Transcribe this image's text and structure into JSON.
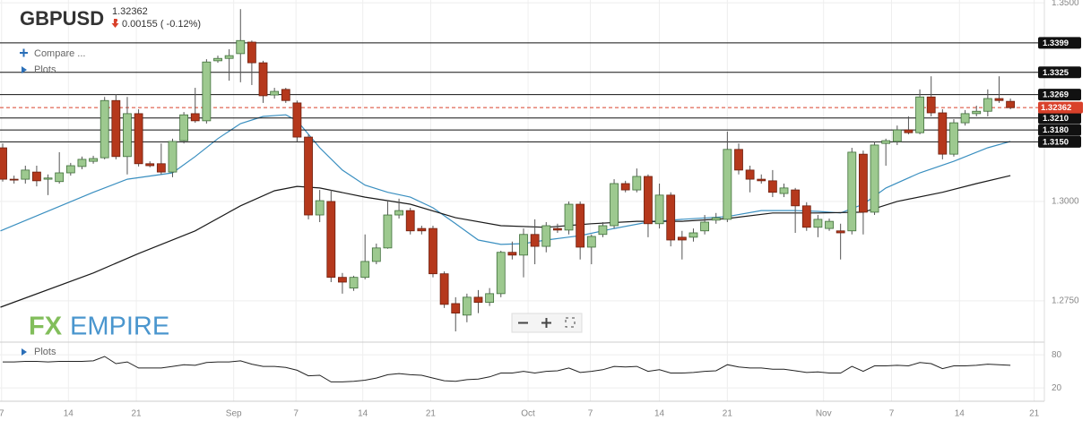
{
  "header": {
    "symbol": "GBPUSD",
    "change": "0.00155 ( -0.12%)"
  },
  "menu": {
    "compare": "Compare ...",
    "plots": "Plots"
  },
  "indicator_panel": {
    "label": "Plots"
  },
  "logo": {
    "fx": "FX",
    "empire": "EMPIRE"
  },
  "chart_data": [
    {
      "type": "candlestick",
      "xlim": [
        -0.24,
        92
      ],
      "ylim": [
        1.2655,
        1.3507
      ],
      "yticks": [
        {
          "value": 1.35,
          "label": "1.3500"
        },
        {
          "value": 1.3,
          "label": "1.3000"
        },
        {
          "value": 1.275,
          "label": "1.2750"
        }
      ],
      "xticks": [
        {
          "value": -0.1,
          "label": "7"
        },
        {
          "value": 5.8,
          "label": "14"
        },
        {
          "value": 11.8,
          "label": "21"
        },
        {
          "value": 20.4,
          "label": "Sep"
        },
        {
          "value": 25.9,
          "label": "7"
        },
        {
          "value": 31.8,
          "label": "14"
        },
        {
          "value": 37.8,
          "label": "21"
        },
        {
          "value": 46.4,
          "label": "Oct"
        },
        {
          "value": 51.9,
          "label": "7"
        },
        {
          "value": 58.0,
          "label": "14"
        },
        {
          "value": 64.0,
          "label": "21"
        },
        {
          "value": 72.5,
          "label": "Nov"
        },
        {
          "value": 78.5,
          "label": "7"
        },
        {
          "value": 84.5,
          "label": "14"
        },
        {
          "value": 91.1,
          "label": "21"
        }
      ],
      "grid": true,
      "up_color": "#9dc98f",
      "down_color": "#b5381c",
      "open": [
        1.3135,
        1.3056,
        1.3056,
        1.3074,
        1.3056,
        1.305,
        1.3072,
        1.3088,
        1.3101,
        1.311,
        1.3254,
        1.3113,
        1.3221,
        1.3095,
        1.3095,
        1.3074,
        1.3153,
        1.3221,
        1.3203,
        1.3354,
        1.336,
        1.3372,
        1.3401,
        1.3349,
        1.3268,
        1.3282,
        1.3248,
        1.3162,
        1.2966,
        1.3,
        1.2809,
        1.2782,
        1.2809,
        1.2849,
        1.2883,
        1.2966,
        1.2977,
        1.2932,
        1.2932,
        1.2818,
        1.2743,
        1.2714,
        1.2759,
        1.2746,
        1.2768,
        1.2872,
        1.2865,
        1.2917,
        1.2887,
        1.2932,
        1.2928,
        1.2993,
        1.2885,
        1.2917,
        1.2939,
        1.3045,
        1.3029,
        1.3063,
        1.2944,
        1.3016,
        1.291,
        1.291,
        1.2926,
        1.2953,
        1.2955,
        1.3131,
        1.3079,
        1.3056,
        1.3052,
        1.302,
        1.3029,
        1.2989,
        1.2935,
        1.2932,
        1.2926,
        1.2926,
        1.3119,
        1.2973,
        1.3146,
        1.3151,
        1.318,
        1.3173,
        1.3263,
        1.3223,
        1.3119,
        1.3198,
        1.3221,
        1.3227,
        1.3259,
        1.3252
      ],
      "high": [
        1.3146,
        1.3065,
        1.309,
        1.309,
        1.3068,
        1.3124,
        1.3097,
        1.3113,
        1.3115,
        1.3263,
        1.327,
        1.3263,
        1.3232,
        1.3101,
        1.3146,
        1.3158,
        1.3225,
        1.3286,
        1.3358,
        1.3367,
        1.3383,
        1.3484,
        1.3405,
        1.3354,
        1.3286,
        1.3286,
        1.3254,
        1.3169,
        1.3029,
        1.3029,
        1.282,
        1.2813,
        1.2917,
        1.2894,
        1.3,
        1.3007,
        1.2984,
        1.2939,
        1.2939,
        1.2824,
        1.2759,
        1.2768,
        1.2777,
        1.2782,
        1.2876,
        1.2899,
        1.2932,
        1.2955,
        1.2948,
        1.2944,
        1.3,
        1.3,
        1.2917,
        1.2948,
        1.3056,
        1.3052,
        1.3083,
        1.3068,
        1.3045,
        1.3023,
        1.2926,
        1.2932,
        1.2966,
        1.2971,
        1.3176,
        1.3146,
        1.309,
        1.3068,
        1.3079,
        1.3045,
        1.3034,
        1.2998,
        1.2966,
        1.2957,
        1.2944,
        1.3135,
        1.3128,
        1.3151,
        1.3158,
        1.3191,
        1.3214,
        1.3282,
        1.3315,
        1.3232,
        1.3207,
        1.323,
        1.3241,
        1.3282,
        1.3315,
        1.3259
      ],
      "low": [
        1.305,
        1.3045,
        1.3045,
        1.3038,
        1.3016,
        1.3045,
        1.3065,
        1.3081,
        1.3095,
        1.3106,
        1.3106,
        1.3068,
        1.3088,
        1.3086,
        1.3068,
        1.3061,
        1.3146,
        1.3198,
        1.3196,
        1.3349,
        1.3304,
        1.33,
        1.3293,
        1.3248,
        1.3259,
        1.3248,
        1.3151,
        1.2955,
        1.2948,
        1.2797,
        1.2768,
        1.2775,
        1.2804,
        1.2842,
        1.2881,
        1.2957,
        1.2917,
        1.2917,
        1.2809,
        1.2732,
        1.2673,
        1.2696,
        1.2719,
        1.2737,
        1.2759,
        1.2854,
        1.2809,
        1.2842,
        1.2872,
        1.2921,
        1.2917,
        1.2854,
        1.2842,
        1.291,
        1.2932,
        1.3023,
        1.3023,
        1.291,
        1.2932,
        1.2887,
        1.2854,
        1.2899,
        1.2917,
        1.2944,
        1.2948,
        1.3068,
        1.3023,
        1.3045,
        1.3011,
        1.3011,
        1.2921,
        1.2926,
        1.291,
        1.2926,
        1.2854,
        1.2917,
        1.2917,
        1.2966,
        1.309,
        1.3142,
        1.3169,
        1.3169,
        1.3214,
        1.3106,
        1.3113,
        1.3191,
        1.3214,
        1.3214,
        1.3248,
        1.3232
      ],
      "close": [
        1.3056,
        1.3054,
        1.3079,
        1.3052,
        1.3059,
        1.3072,
        1.309,
        1.3106,
        1.3108,
        1.3254,
        1.3113,
        1.3221,
        1.3095,
        1.309,
        1.3074,
        1.3151,
        1.3218,
        1.3203,
        1.3351,
        1.336,
        1.3367,
        1.3405,
        1.3349,
        1.3266,
        1.3277,
        1.3254,
        1.3162,
        1.2966,
        1.3002,
        1.2809,
        1.2797,
        1.2809,
        1.2849,
        1.2883,
        1.2966,
        1.2977,
        1.2926,
        1.2926,
        1.2818,
        1.2741,
        1.2719,
        1.2759,
        1.2746,
        1.2768,
        1.2872,
        1.2865,
        1.2917,
        1.2887,
        1.2939,
        1.2928,
        1.2993,
        1.2885,
        1.2912,
        1.2939,
        1.3045,
        1.3029,
        1.3063,
        1.2944,
        1.3016,
        1.2903,
        1.2903,
        1.2921,
        1.2948,
        1.2959,
        1.3131,
        1.3079,
        1.3056,
        1.3052,
        1.3023,
        1.3034,
        1.2989,
        1.2935,
        1.2955,
        1.295,
        1.2921,
        1.3124,
        1.2973,
        1.3142,
        1.3153,
        1.318,
        1.3173,
        1.3263,
        1.3223,
        1.3119,
        1.3198,
        1.3221,
        1.3227,
        1.3259,
        1.3254,
        1.3236
      ],
      "series": [
        {
          "color": "#3a8fc0",
          "x": [
            -0.2,
            8,
            11,
            15,
            17,
            19,
            21,
            23,
            25,
            26,
            28,
            30,
            32,
            34,
            36,
            38,
            40,
            42,
            44,
            46,
            48,
            51,
            54,
            57,
            60,
            64,
            67,
            70,
            72,
            74,
            76,
            78,
            81,
            84,
            87,
            89
          ],
          "values": [
            1.2926,
            1.3023,
            1.3056,
            1.3072,
            1.3113,
            1.3158,
            1.3196,
            1.3214,
            1.3218,
            1.3203,
            1.3135,
            1.3079,
            1.3041,
            1.3023,
            1.3011,
            1.2984,
            1.2944,
            1.2903,
            1.2892,
            1.2894,
            1.2903,
            1.2914,
            1.2932,
            1.2948,
            1.2955,
            1.2962,
            1.2977,
            1.2977,
            1.2975,
            1.2971,
            1.2993,
            1.3034,
            1.3072,
            1.3101,
            1.3135,
            1.3151
          ]
        },
        {
          "color": "#1a1a1a",
          "x": [
            -0.2,
            8,
            12,
            17,
            21,
            24,
            26,
            28,
            32,
            36,
            40,
            44,
            48,
            52,
            56,
            60,
            64,
            68,
            72,
            76,
            79,
            83,
            86,
            89
          ],
          "values": [
            1.2734,
            1.282,
            1.2869,
            1.2926,
            1.2989,
            1.3027,
            1.3038,
            1.3034,
            1.3011,
            1.2993,
            1.2959,
            1.2939,
            1.2935,
            1.2944,
            1.295,
            1.295,
            1.2957,
            1.2971,
            1.2971,
            1.2973,
            1.3,
            1.3023,
            1.3045,
            1.3065
          ]
        }
      ],
      "levels": [
        1.3399,
        1.3325,
        1.3269,
        {
          "value": 1.321,
          "label": "1.3210"
        },
        {
          "value": 1.318,
          "label": "1.3180"
        },
        {
          "value": 1.315,
          "label": "1.3150"
        }
      ],
      "level_color": "#111111",
      "last_price": 1.32362,
      "last_color": "#d9412b"
    },
    {
      "type": "line",
      "xlim": [
        -0.24,
        92
      ],
      "ylim": [
        -4,
        98
      ],
      "yticks": [
        20,
        80
      ],
      "color": "#222222",
      "values": [
        67,
        67,
        68,
        68,
        67,
        68,
        68,
        68,
        69,
        77,
        64,
        67,
        56,
        56,
        56,
        59,
        62,
        61,
        66,
        67,
        67,
        69,
        63,
        59,
        59,
        57,
        52,
        42,
        43,
        31,
        31,
        32,
        34,
        38,
        44,
        46,
        44,
        43,
        38,
        33,
        32,
        35,
        36,
        40,
        47,
        47,
        50,
        47,
        50,
        51,
        56,
        48,
        50,
        53,
        59,
        58,
        59,
        50,
        53,
        47,
        47,
        48,
        50,
        51,
        62,
        58,
        56,
        56,
        54,
        54,
        51,
        48,
        49,
        47,
        47,
        59,
        50,
        60,
        60,
        61,
        60,
        66,
        64,
        55,
        60,
        60,
        61,
        63,
        62,
        61
      ]
    }
  ]
}
